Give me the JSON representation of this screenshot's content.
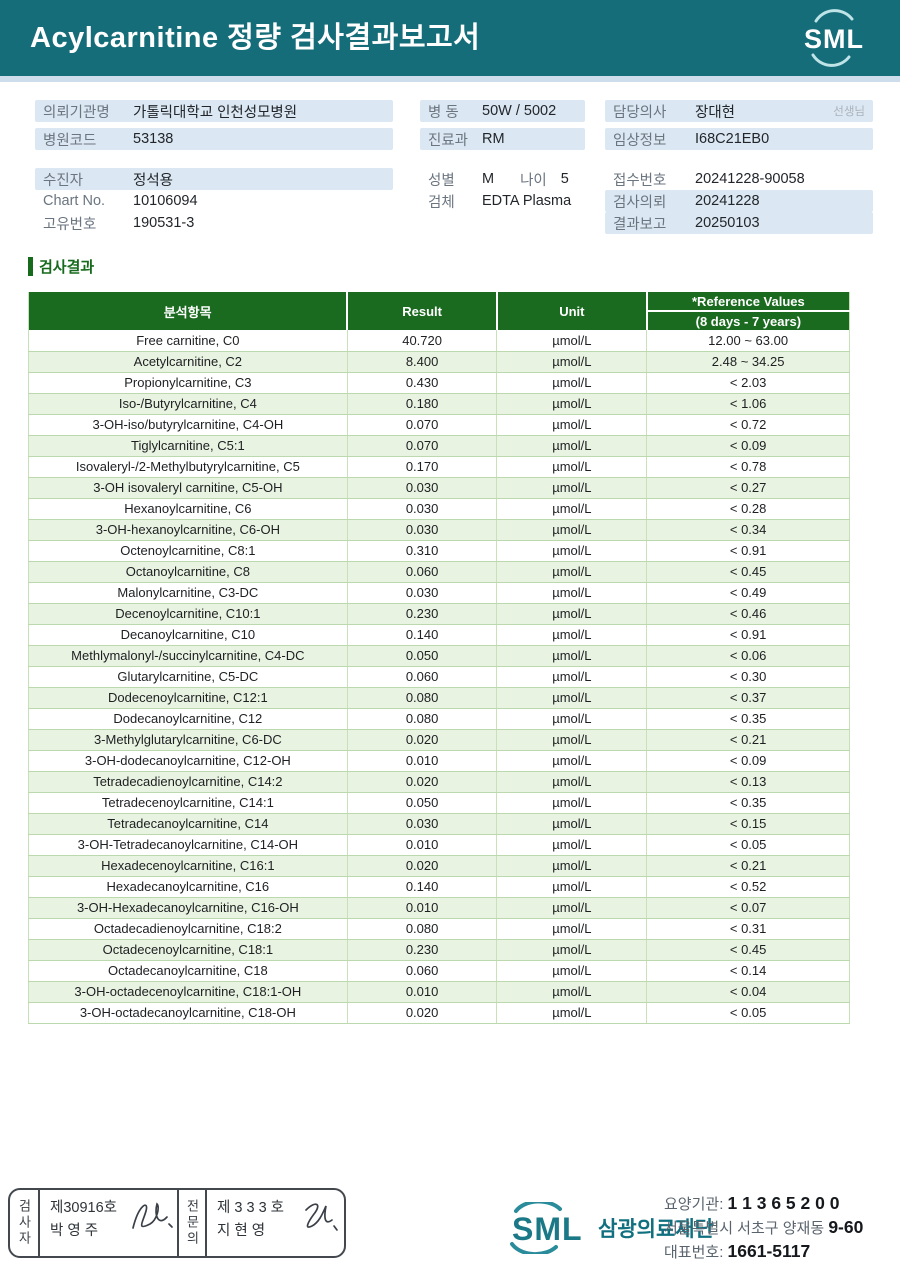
{
  "header": {
    "title": "Acylcarnitine 정량 검사결과보고서",
    "logo_text": "SML"
  },
  "info": {
    "left": [
      {
        "id": "requesting-org",
        "label": "의뢰기관명",
        "value": "가톨릭대학교 인천성모병원",
        "hl": true
      },
      {
        "id": "hospital-code",
        "label": "병원코드",
        "value": "53138",
        "hl": true,
        "gap": "sm"
      },
      {
        "id": "patient-name",
        "label": "수진자",
        "value": "정석용",
        "hl": true,
        "gap": "lg"
      },
      {
        "id": "chart-no",
        "label": "Chart No.",
        "value": "10106094"
      },
      {
        "id": "unique-no",
        "label": "고유번호",
        "value": "190531-3"
      }
    ],
    "middle": [
      {
        "id": "ward",
        "label": "병 동",
        "value": "50W / 5002",
        "hl": true
      },
      {
        "id": "department",
        "label": "진료과",
        "value": "RM",
        "hl": true,
        "gap": "sm"
      },
      {
        "id": "sex-age",
        "label": "성별",
        "value": "M",
        "label2": "나이",
        "value2": "5",
        "gap": "lg"
      },
      {
        "id": "specimen",
        "label": "검체",
        "value": "EDTA Plasma"
      }
    ],
    "right": [
      {
        "id": "doctor",
        "label": "담당의사",
        "value": "장대현",
        "suffix": "선생님",
        "hl": true
      },
      {
        "id": "clinical-info",
        "label": "임상정보",
        "value": "I68C21EB0",
        "hl": true,
        "gap": "sm"
      },
      {
        "id": "receipt-no",
        "label": "접수번호",
        "value": "20241228-90058",
        "gap": "lg"
      },
      {
        "id": "request-date",
        "label": "검사의뢰",
        "value": "20241228",
        "hl": true
      },
      {
        "id": "report-date",
        "label": "결과보고",
        "value": "20250103",
        "hl": true
      }
    ]
  },
  "results": {
    "section_title": "검사결과",
    "columns": {
      "analyte": "분석항목",
      "result": "Result",
      "unit": "Unit",
      "ref_top": "*Reference Values",
      "ref_bottom": "(8 days - 7 years)"
    },
    "rows": [
      {
        "analyte": "Free carnitine, C0",
        "result": "40.720",
        "unit": "µmol/L",
        "ref": "12.00 ~ 63.00"
      },
      {
        "analyte": "Acetylcarnitine, C2",
        "result": "8.400",
        "unit": "µmol/L",
        "ref": "2.48 ~ 34.25"
      },
      {
        "analyte": "Propionylcarnitine, C3",
        "result": "0.430",
        "unit": "µmol/L",
        "ref": "< 2.03"
      },
      {
        "analyte": "Iso-/Butyrylcarnitine, C4",
        "result": "0.180",
        "unit": "µmol/L",
        "ref": "< 1.06"
      },
      {
        "analyte": "3-OH-iso/butyrylcarnitine, C4-OH",
        "result": "0.070",
        "unit": "µmol/L",
        "ref": "< 0.72"
      },
      {
        "analyte": "Tiglylcarnitine, C5:1",
        "result": "0.070",
        "unit": "µmol/L",
        "ref": "< 0.09"
      },
      {
        "analyte": "Isovaleryl-/2-Methylbutyrylcarnitine, C5",
        "result": "0.170",
        "unit": "µmol/L",
        "ref": "< 0.78"
      },
      {
        "analyte": "3-OH isovaleryl carnitine, C5-OH",
        "result": "0.030",
        "unit": "µmol/L",
        "ref": "< 0.27"
      },
      {
        "analyte": "Hexanoylcarnitine, C6",
        "result": "0.030",
        "unit": "µmol/L",
        "ref": "< 0.28"
      },
      {
        "analyte": "3-OH-hexanoylcarnitine, C6-OH",
        "result": "0.030",
        "unit": "µmol/L",
        "ref": "< 0.34"
      },
      {
        "analyte": "Octenoylcarnitine, C8:1",
        "result": "0.310",
        "unit": "µmol/L",
        "ref": "< 0.91"
      },
      {
        "analyte": "Octanoylcarnitine, C8",
        "result": "0.060",
        "unit": "µmol/L",
        "ref": "< 0.45"
      },
      {
        "analyte": "Malonylcarnitine, C3-DC",
        "result": "0.030",
        "unit": "µmol/L",
        "ref": "< 0.49"
      },
      {
        "analyte": "Decenoylcarnitine, C10:1",
        "result": "0.230",
        "unit": "µmol/L",
        "ref": "< 0.46"
      },
      {
        "analyte": "Decanoylcarnitine, C10",
        "result": "0.140",
        "unit": "µmol/L",
        "ref": "< 0.91"
      },
      {
        "analyte": "Methlymalonyl-/succinylcarnitine, C4-DC",
        "result": "0.050",
        "unit": "µmol/L",
        "ref": "< 0.06"
      },
      {
        "analyte": "Glutarylcarnitine, C5-DC",
        "result": "0.060",
        "unit": "µmol/L",
        "ref": "< 0.30"
      },
      {
        "analyte": "Dodecenoylcarnitine, C12:1",
        "result": "0.080",
        "unit": "µmol/L",
        "ref": "< 0.37"
      },
      {
        "analyte": "Dodecanoylcarnitine, C12",
        "result": "0.080",
        "unit": "µmol/L",
        "ref": "< 0.35"
      },
      {
        "analyte": "3-Methylglutarylcarnitine, C6-DC",
        "result": "0.020",
        "unit": "µmol/L",
        "ref": "< 0.21"
      },
      {
        "analyte": "3-OH-dodecanoylcarnitine, C12-OH",
        "result": "0.010",
        "unit": "µmol/L",
        "ref": "< 0.09"
      },
      {
        "analyte": "Tetradecadienoylcarnitine, C14:2",
        "result": "0.020",
        "unit": "µmol/L",
        "ref": "< 0.13"
      },
      {
        "analyte": "Tetradecenoylcarnitine, C14:1",
        "result": "0.050",
        "unit": "µmol/L",
        "ref": "< 0.35"
      },
      {
        "analyte": "Tetradecanoylcarnitine, C14",
        "result": "0.030",
        "unit": "µmol/L",
        "ref": "< 0.15"
      },
      {
        "analyte": "3-OH-Tetradecanoylcarnitine, C14-OH",
        "result": "0.010",
        "unit": "µmol/L",
        "ref": "< 0.05"
      },
      {
        "analyte": "Hexadecenoylcarnitine, C16:1",
        "result": "0.020",
        "unit": "µmol/L",
        "ref": "< 0.21"
      },
      {
        "analyte": "Hexadecanoylcarnitine, C16",
        "result": "0.140",
        "unit": "µmol/L",
        "ref": "< 0.52"
      },
      {
        "analyte": "3-OH-Hexadecanoylcarnitine, C16-OH",
        "result": "0.010",
        "unit": "µmol/L",
        "ref": "< 0.07"
      },
      {
        "analyte": "Octadecadienoylcarnitine, C18:2",
        "result": "0.080",
        "unit": "µmol/L",
        "ref": "< 0.31"
      },
      {
        "analyte": "Octadecenoylcarnitine, C18:1",
        "result": "0.230",
        "unit": "µmol/L",
        "ref": "< 0.45"
      },
      {
        "analyte": "Octadecanoylcarnitine, C18",
        "result": "0.060",
        "unit": "µmol/L",
        "ref": "< 0.14"
      },
      {
        "analyte": "3-OH-octadecenoylcarnitine, C18:1-OH",
        "result": "0.010",
        "unit": "µmol/L",
        "ref": "< 0.04"
      },
      {
        "analyte": "3-OH-octadecanoylcarnitine, C18-OH",
        "result": "0.020",
        "unit": "µmol/L",
        "ref": "< 0.05"
      }
    ]
  },
  "footer": {
    "stamp": {
      "role1": "검사자",
      "cert1": "제30916호",
      "name1": "박  영  주",
      "role2": "전문의",
      "cert2": "제 3 3 3 호",
      "name2": "지  현  영"
    },
    "logo": {
      "text": "SML",
      "org": "삼광의료재단"
    },
    "contact": {
      "line1_label": "요양기관:",
      "line1_value": "1 1 3 6 5 2 0 0",
      "line2_label": "서울특별시 서초구 양재동",
      "line2_value": "9-60",
      "line3_label": "대표번호:",
      "line3_value": "1661-5117"
    }
  }
}
